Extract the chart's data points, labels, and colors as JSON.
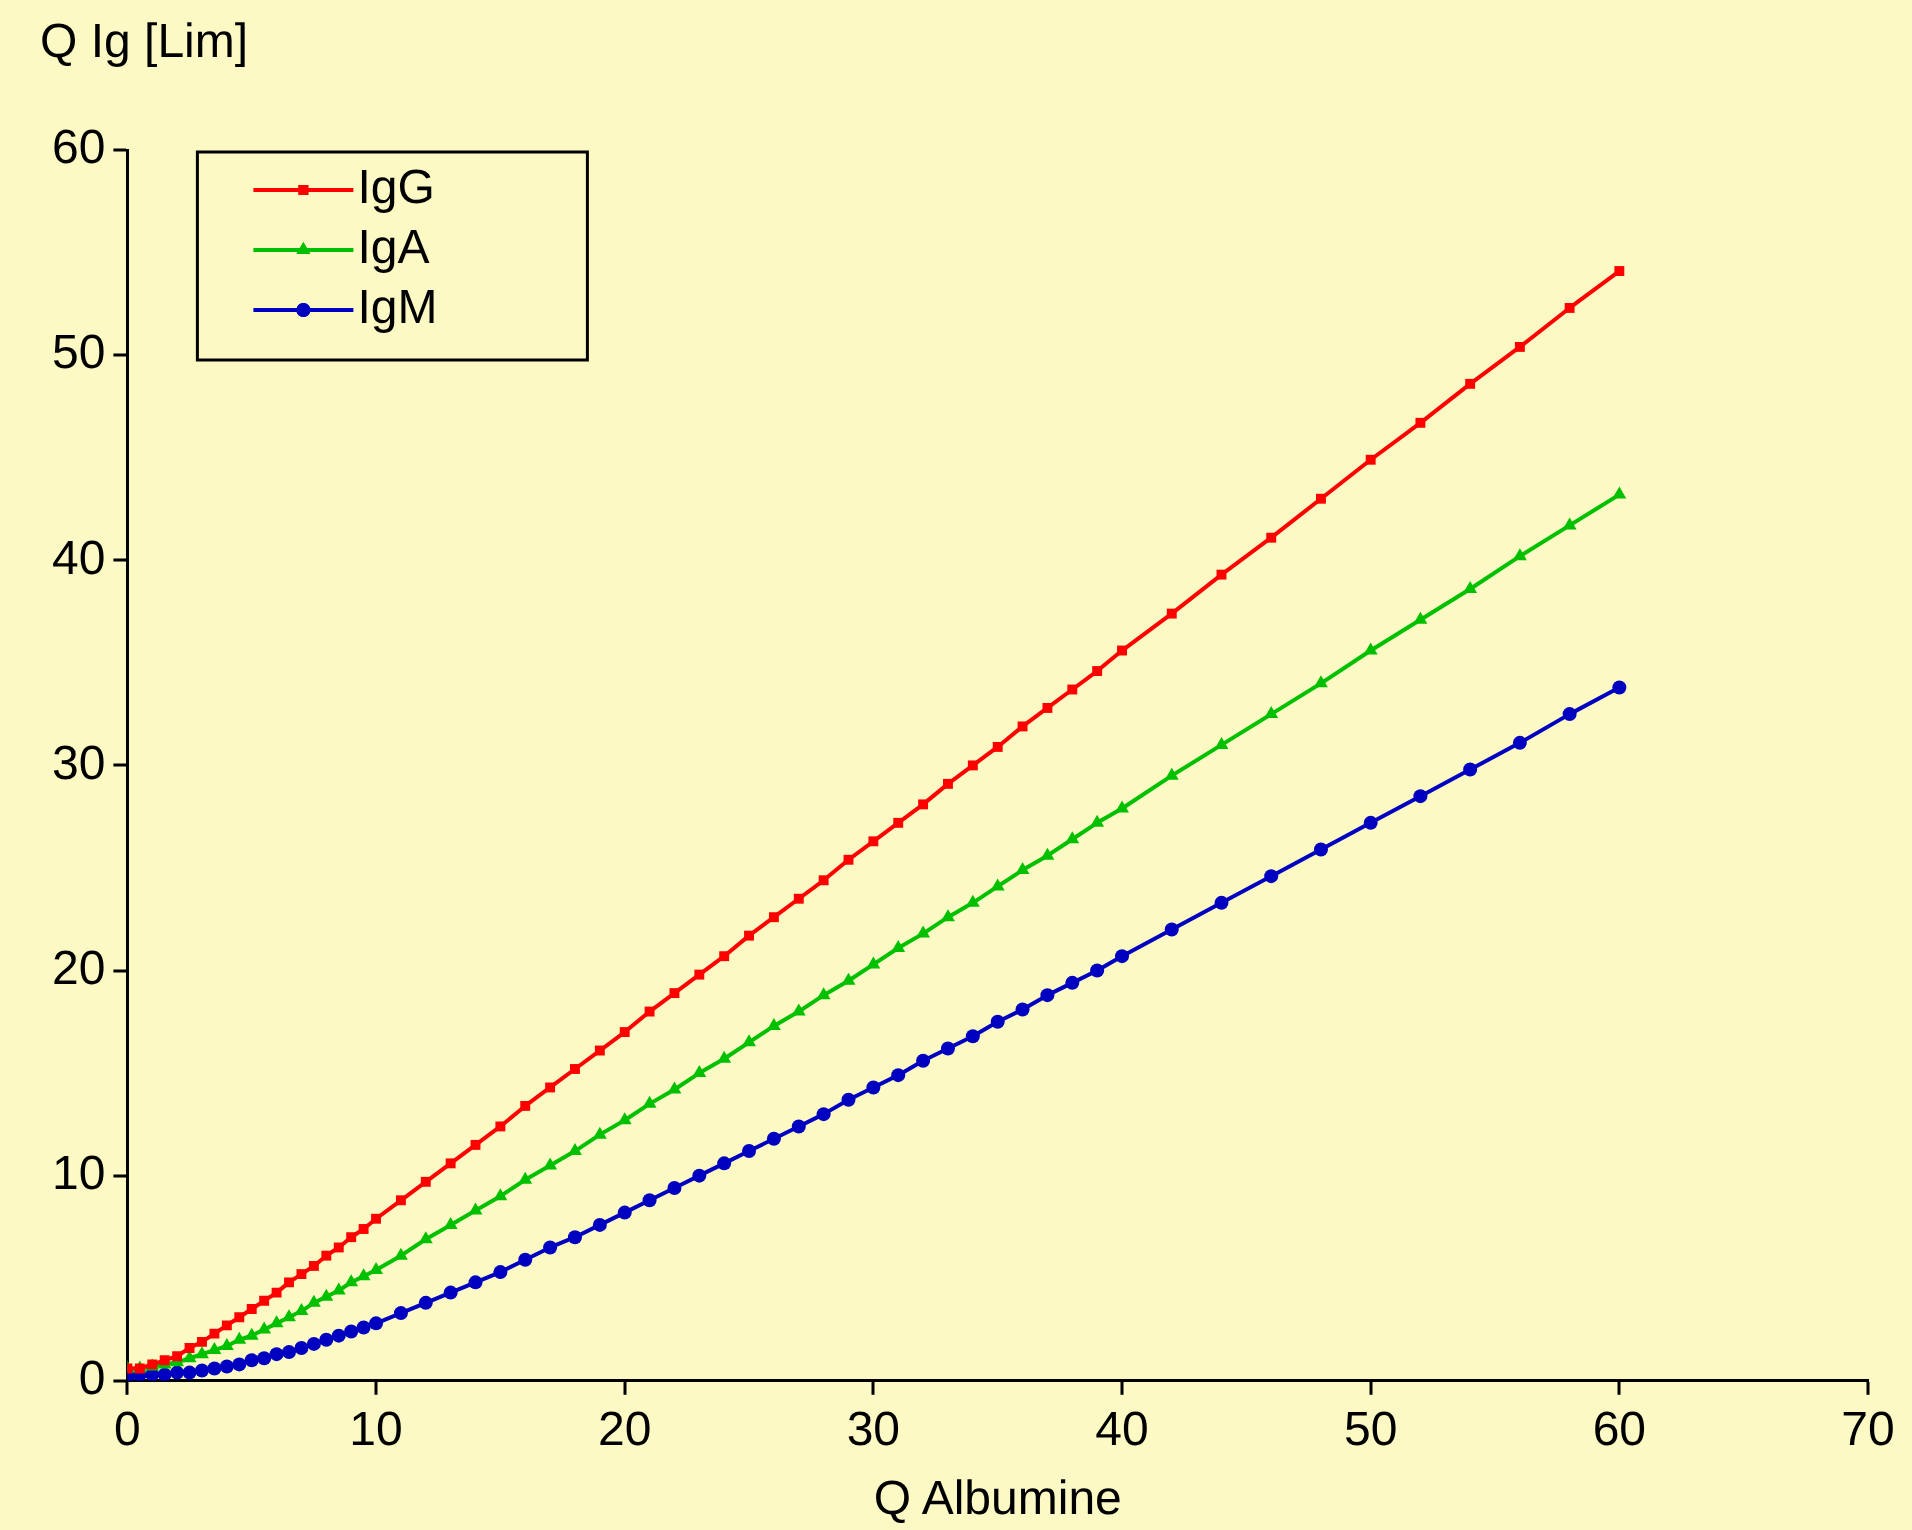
{
  "chart_data": {
    "type": "line",
    "xlabel": "Q Albumine",
    "ylabel": "Q Ig [Lim]",
    "x": [
      0,
      0.5,
      1,
      1.5,
      2,
      2.5,
      3,
      3.5,
      4,
      4.5,
      5,
      5.5,
      6,
      6.5,
      7,
      7.5,
      8,
      8.5,
      9,
      9.5,
      10,
      11,
      12,
      13,
      14,
      15,
      16,
      17,
      18,
      19,
      20,
      21,
      22,
      23,
      24,
      25,
      26,
      27,
      28,
      29,
      30,
      31,
      32,
      33,
      34,
      35,
      36,
      37,
      38,
      39,
      40,
      42,
      44,
      46,
      48,
      50,
      52,
      54,
      56,
      58,
      60
    ],
    "series": [
      {
        "name": "IgG",
        "color": "#ff0000",
        "marker": "square",
        "values": [
          0.6,
          0.6,
          0.8,
          1.0,
          1.2,
          1.6,
          1.9,
          2.3,
          2.7,
          3.1,
          3.5,
          3.9,
          4.3,
          4.8,
          5.2,
          5.6,
          6.1,
          6.5,
          7.0,
          7.4,
          7.9,
          8.8,
          9.7,
          10.6,
          11.5,
          12.4,
          13.4,
          14.3,
          15.2,
          16.1,
          17.0,
          18.0,
          18.9,
          19.8,
          20.7,
          21.7,
          22.6,
          23.5,
          24.4,
          25.4,
          26.3,
          27.2,
          28.1,
          29.1,
          30.0,
          30.9,
          31.9,
          32.8,
          33.7,
          34.6,
          35.6,
          37.4,
          39.3,
          41.1,
          43.0,
          44.9,
          46.7,
          48.6,
          50.4,
          52.3,
          54.1
        ]
      },
      {
        "name": "IgA",
        "color": "#00c000",
        "marker": "triangle",
        "values": [
          0.6,
          0.6,
          0.7,
          0.8,
          0.9,
          1.1,
          1.3,
          1.5,
          1.7,
          2.0,
          2.2,
          2.5,
          2.8,
          3.1,
          3.4,
          3.8,
          4.1,
          4.4,
          4.8,
          5.1,
          5.4,
          6.1,
          6.9,
          7.6,
          8.3,
          9.0,
          9.8,
          10.5,
          11.2,
          12.0,
          12.7,
          13.5,
          14.2,
          15.0,
          15.7,
          16.5,
          17.3,
          18.0,
          18.8,
          19.5,
          20.3,
          21.1,
          21.8,
          22.6,
          23.3,
          24.1,
          24.9,
          25.6,
          26.4,
          27.2,
          27.9,
          29.5,
          31.0,
          32.5,
          34.0,
          35.6,
          37.1,
          38.6,
          40.2,
          41.7,
          43.2
        ]
      },
      {
        "name": "IgM",
        "color": "#0000c0",
        "marker": "circle",
        "values": [
          0.2,
          0.3,
          0.3,
          0.3,
          0.4,
          0.4,
          0.5,
          0.6,
          0.7,
          0.8,
          1.0,
          1.1,
          1.3,
          1.4,
          1.6,
          1.8,
          2.0,
          2.2,
          2.4,
          2.6,
          2.8,
          3.3,
          3.8,
          4.3,
          4.8,
          5.3,
          5.9,
          6.5,
          7.0,
          7.6,
          8.2,
          8.8,
          9.4,
          10.0,
          10.6,
          11.2,
          11.8,
          12.4,
          13.0,
          13.7,
          14.3,
          14.9,
          15.6,
          16.2,
          16.8,
          17.5,
          18.1,
          18.8,
          19.4,
          20.0,
          20.7,
          22.0,
          23.3,
          24.6,
          25.9,
          27.2,
          28.5,
          29.8,
          31.1,
          32.5,
          33.8
        ]
      }
    ],
    "xlim": [
      0,
      70
    ],
    "xticks": [
      0,
      10,
      20,
      30,
      40,
      50,
      60,
      70
    ],
    "ylim": [
      0,
      60
    ],
    "yticks": [
      0,
      10,
      20,
      30,
      40,
      50,
      60
    ],
    "grid": false,
    "legend": "top left",
    "line_style": "solid"
  }
}
